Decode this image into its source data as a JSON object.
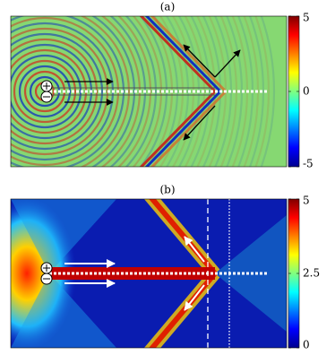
{
  "panels": [
    {
      "label": "(a)",
      "colorbar": {
        "lim": [
          -5,
          5
        ],
        "ticks": [
          5,
          0,
          -5
        ]
      }
    },
    {
      "label": "(b)",
      "colorbar": {
        "lim": [
          0,
          5
        ],
        "ticks": [
          5,
          2.5,
          0
        ]
      }
    }
  ]
}
